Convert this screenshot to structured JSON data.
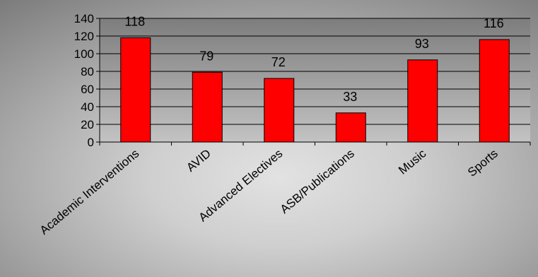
{
  "chart_data": {
    "type": "bar",
    "categories": [
      "Academic Interventions",
      "AVID",
      "Advanced Electives",
      "ASB/Publications",
      "Music",
      "Sports"
    ],
    "values": [
      118,
      79,
      72,
      33,
      93,
      116
    ],
    "data_labels": [
      "118",
      "79",
      "72",
      "33",
      "93",
      "116"
    ],
    "title": "",
    "xlabel": "",
    "ylabel": "",
    "ylim": [
      0,
      140
    ],
    "yticks": [
      0,
      20,
      40,
      60,
      80,
      100,
      120,
      140
    ],
    "ytick_labels": [
      "0",
      "20",
      "40",
      "60",
      "80",
      "100",
      "120",
      "140"
    ],
    "grid": true,
    "legend": "none",
    "colors": {
      "bar_fill": "#ff0000",
      "bar_stroke": "#000000",
      "gridline": "#000000",
      "axis": "#000000"
    }
  }
}
